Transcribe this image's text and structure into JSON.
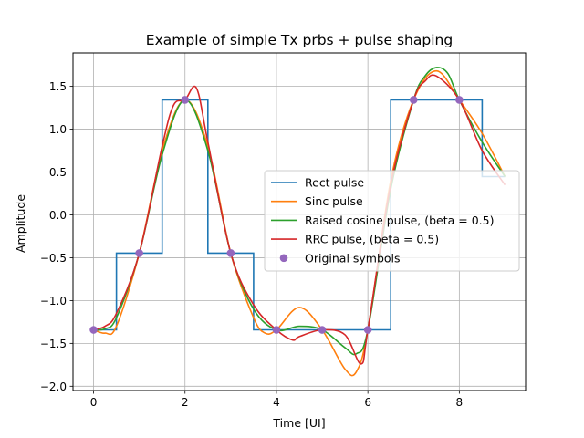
{
  "chart_data": {
    "type": "line",
    "title": "Example of simple Tx prbs + pulse shaping",
    "xlabel": "Time [UI]",
    "ylabel": "Amplitude",
    "xlim": [
      -0.45,
      9.45
    ],
    "ylim": [
      -2.05,
      1.89
    ],
    "grid": true,
    "legend_position": "center-right",
    "x_ticks": [
      0,
      2,
      4,
      6,
      8
    ],
    "x_tick_labels": [
      "0",
      "2",
      "4",
      "6",
      "8"
    ],
    "y_ticks": [
      -2.0,
      -1.5,
      -1.0,
      -0.5,
      0.0,
      0.5,
      1.0,
      1.5
    ],
    "y_tick_labels": [
      "−2.0",
      "−1.5",
      "−1.0",
      "−0.5",
      "0.0",
      "0.5",
      "1.0",
      "1.5"
    ],
    "series": [
      {
        "name": "Rect pulse",
        "color": "#1f77b4",
        "style": "step",
        "x": [
          0,
          0.5,
          0.5,
          1.5,
          1.5,
          2.5,
          2.5,
          3.5,
          3.5,
          4.5,
          4.5,
          5.5,
          5.5,
          6.5,
          6.5,
          7.5,
          7.5,
          8.5,
          8.5,
          9
        ],
        "y": [
          -1.342,
          -1.342,
          -0.447,
          -0.447,
          1.342,
          1.342,
          -0.447,
          -0.447,
          -1.342,
          -1.342,
          -1.342,
          -1.342,
          -1.342,
          -1.342,
          1.342,
          1.342,
          1.342,
          1.342,
          0.447,
          0.447
        ]
      },
      {
        "name": "Sinc pulse",
        "color": "#ff7f0e",
        "x": [
          0,
          0.25,
          0.5,
          1,
          1.5,
          2,
          2.5,
          3,
          3.5,
          3.75,
          4,
          4.5,
          5,
          5.5,
          5.75,
          6,
          6.5,
          7,
          7.5,
          8,
          8.5,
          9
        ],
        "y": [
          -1.342,
          -1.38,
          -1.3,
          -0.447,
          0.75,
          1.342,
          0.8,
          -0.447,
          -1.2,
          -1.38,
          -1.342,
          -1.08,
          -1.342,
          -1.8,
          -1.83,
          -1.342,
          0.4,
          1.342,
          1.68,
          1.342,
          0.95,
          0.447
        ]
      },
      {
        "name": "Raised cosine pulse, (beta = 0.5)",
        "color": "#2ca02c",
        "x": [
          0,
          0.25,
          0.5,
          1,
          1.5,
          2,
          2.5,
          3,
          3.5,
          4,
          4.5,
          5,
          5.5,
          5.75,
          6,
          6.5,
          7,
          7.25,
          7.5,
          7.75,
          8,
          8.5,
          9
        ],
        "y": [
          -1.342,
          -1.33,
          -1.2,
          -0.447,
          0.7,
          1.342,
          0.75,
          -0.447,
          -1.1,
          -1.342,
          -1.3,
          -1.342,
          -1.55,
          -1.62,
          -1.342,
          0.3,
          1.342,
          1.62,
          1.72,
          1.65,
          1.342,
          0.85,
          0.447
        ]
      },
      {
        "name": "RRC pulse, (beta = 0.5)",
        "color": "#d62728",
        "x": [
          0,
          0.25,
          0.5,
          1,
          1.5,
          1.75,
          2,
          2.25,
          2.5,
          3,
          3.5,
          4,
          4.35,
          4.5,
          5,
          5.5,
          5.85,
          6,
          6.5,
          7,
          7.25,
          7.5,
          8,
          8.5,
          9
        ],
        "y": [
          -1.342,
          -1.3,
          -1.15,
          -0.447,
          0.8,
          1.28,
          1.342,
          1.48,
          0.85,
          -0.447,
          -1.05,
          -1.342,
          -1.46,
          -1.42,
          -1.342,
          -1.4,
          -1.74,
          -1.342,
          0.35,
          1.342,
          1.56,
          1.62,
          1.342,
          0.75,
          0.35
        ]
      },
      {
        "name": "Original symbols",
        "color": "#9467bd",
        "style": "markers",
        "x": [
          0,
          1,
          2,
          3,
          4,
          5,
          6,
          7,
          8
        ],
        "y": [
          -1.342,
          -0.447,
          1.342,
          -0.447,
          -1.342,
          -1.342,
          -1.342,
          1.342,
          1.342
        ]
      }
    ]
  }
}
